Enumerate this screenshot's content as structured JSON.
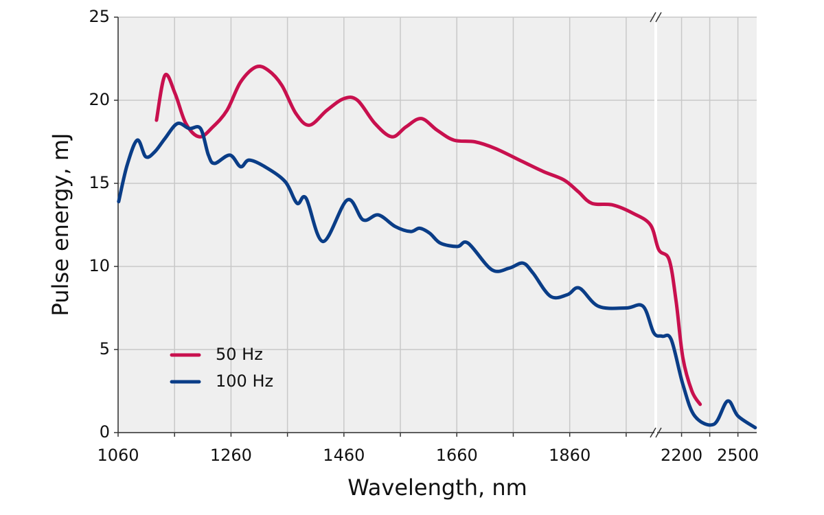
{
  "chart_data": {
    "type": "line",
    "xlabel": "Wavelength, nm",
    "ylabel": "Pulse energy, mJ",
    "xlim": [
      1060,
      2600
    ],
    "x_break": [
      2010,
      2070
    ],
    "xticks": [
      1060,
      1260,
      1460,
      1660,
      1860,
      2200,
      2500
    ],
    "x_minor_ticks": [
      1160,
      1360,
      1560,
      1760,
      1960,
      2350
    ],
    "ylim": [
      0,
      25
    ],
    "yticks": [
      0,
      5,
      10,
      15,
      20,
      25
    ],
    "grid": true,
    "legend": "lower left",
    "series": [
      {
        "name": "50 Hz",
        "color": "#c8104e",
        "x": [
          1128,
          1143,
          1161,
          1180,
          1204,
          1228,
          1253,
          1277,
          1304,
          1326,
          1350,
          1375,
          1399,
          1430,
          1460,
          1484,
          1515,
          1545,
          1570,
          1597,
          1625,
          1655,
          1692,
          1728,
          1777,
          1814,
          1850,
          1875,
          1899,
          1936,
          1972,
          2003,
          2079,
          2134,
          2171,
          2207,
          2255,
          2299
        ],
        "values": [
          18.8,
          21.5,
          20.4,
          18.6,
          17.8,
          18.4,
          19.4,
          21.1,
          22.0,
          21.8,
          20.9,
          19.2,
          18.5,
          19.4,
          20.1,
          20.0,
          18.6,
          17.8,
          18.4,
          18.9,
          18.2,
          17.6,
          17.5,
          17.1,
          16.3,
          15.7,
          15.2,
          14.5,
          13.8,
          13.7,
          13.2,
          12.5,
          11.0,
          10.4,
          7.9,
          4.5,
          2.5,
          1.7
        ]
      },
      {
        "name": "100 Hz",
        "color": "#0a3d87",
        "x": [
          1061,
          1076,
          1094,
          1109,
          1125,
          1143,
          1165,
          1186,
          1206,
          1220,
          1231,
          1258,
          1277,
          1292,
          1320,
          1356,
          1377,
          1393,
          1423,
          1466,
          1494,
          1521,
          1551,
          1578,
          1594,
          1612,
          1631,
          1661,
          1680,
          1722,
          1753,
          1777,
          1795,
          1826,
          1856,
          1877,
          1911,
          1960,
          1990,
          2009,
          2097,
          2145,
          2207,
          2270,
          2372,
          2445,
          2500,
          2592
        ],
        "values": [
          13.9,
          16.1,
          17.6,
          16.6,
          16.9,
          17.7,
          18.6,
          18.3,
          18.3,
          16.7,
          16.2,
          16.7,
          16.0,
          16.4,
          16.0,
          15.1,
          13.8,
          14.1,
          11.5,
          14.0,
          12.8,
          13.1,
          12.4,
          12.1,
          12.3,
          12.0,
          11.4,
          11.2,
          11.4,
          9.8,
          9.9,
          10.2,
          9.6,
          8.2,
          8.3,
          8.7,
          7.6,
          7.5,
          7.6,
          6.0,
          5.8,
          5.6,
          2.9,
          1.0,
          0.5,
          1.9,
          1.0,
          0.3
        ]
      }
    ]
  }
}
